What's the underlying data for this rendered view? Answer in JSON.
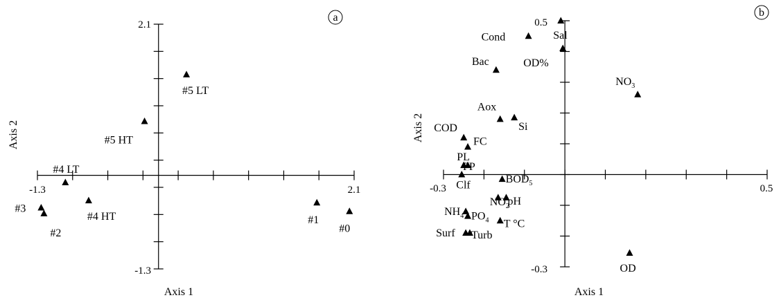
{
  "chart_data": [
    {
      "type": "scatter",
      "panel_label": "a",
      "xlabel": "Axis 1",
      "ylabel": "Axis 2",
      "xlim": [
        -1.3,
        2.1
      ],
      "ylim": [
        -1.3,
        2.1
      ],
      "x_tick_labels": [
        "-1.3",
        "2.1"
      ],
      "y_tick_labels": [
        "2.1",
        "-1.3"
      ],
      "points": [
        {
          "label": "#5 LT",
          "x": 0.3,
          "y": 1.4
        },
        {
          "label": "#5 HT",
          "x": -0.15,
          "y": 0.75
        },
        {
          "label": "#4 LT",
          "x": -1.0,
          "y": -0.1
        },
        {
          "label": "#4 HT",
          "x": -0.75,
          "y": -0.35
        },
        {
          "label": "#3",
          "x": -1.26,
          "y": -0.45
        },
        {
          "label": "#2",
          "x": -1.23,
          "y": -0.53
        },
        {
          "label": "#1",
          "x": 1.7,
          "y": -0.38
        },
        {
          "label": "#0",
          "x": 2.05,
          "y": -0.5
        }
      ]
    },
    {
      "type": "scatter",
      "panel_label": "b",
      "xlabel": "Axis 1",
      "ylabel": "Axis 2",
      "xlim": [
        -0.3,
        0.5
      ],
      "ylim": [
        -0.3,
        0.5
      ],
      "x_tick_labels": [
        "-0.3",
        "0.5"
      ],
      "y_tick_labels": [
        "0.5",
        "-0.3"
      ],
      "points": [
        {
          "label": "Sal",
          "x": -0.01,
          "y": 0.5
        },
        {
          "label": "Cond",
          "x": -0.09,
          "y": 0.45
        },
        {
          "label": "OD%",
          "x": -0.005,
          "y": 0.41
        },
        {
          "label": "Bac",
          "x": -0.17,
          "y": 0.34
        },
        {
          "label": "NO",
          "sub": "3",
          "x": 0.18,
          "y": 0.26
        },
        {
          "label": "Aox",
          "x": -0.16,
          "y": 0.18
        },
        {
          "label": "Si",
          "x": -0.125,
          "y": 0.185
        },
        {
          "label": "COD",
          "x": -0.25,
          "y": 0.12
        },
        {
          "label": "FC",
          "x": -0.24,
          "y": 0.09
        },
        {
          "label": "PL",
          "x": -0.25,
          "y": 0.03
        },
        {
          "label": "PP",
          "x": -0.24,
          "y": 0.03
        },
        {
          "label": "Clf",
          "x": -0.255,
          "y": 0.0
        },
        {
          "label": "BOD",
          "sub": "5",
          "x": -0.155,
          "y": -0.015
        },
        {
          "label": "NO",
          "sub": "2",
          "x": -0.165,
          "y": -0.075
        },
        {
          "label": "pH",
          "x": -0.145,
          "y": -0.075
        },
        {
          "label": "NH",
          "sub": "4",
          "x": -0.245,
          "y": -0.12
        },
        {
          "label": "PO",
          "sub": "4",
          "x": -0.24,
          "y": -0.135
        },
        {
          "label": "T °C",
          "x": -0.16,
          "y": -0.15
        },
        {
          "label": "Surf",
          "x": -0.245,
          "y": -0.19
        },
        {
          "label": "Turb",
          "x": -0.235,
          "y": -0.19
        },
        {
          "label": "OD",
          "x": 0.16,
          "y": -0.255
        }
      ]
    }
  ]
}
